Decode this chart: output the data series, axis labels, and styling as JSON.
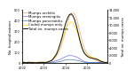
{
  "title": "",
  "background_color": "#ffffff",
  "ylabel_left": "No. hospitalizations",
  "ylabel_right": "Total no. mumps cases",
  "series": {
    "mumps_orchitis": {
      "color": "#f4a460",
      "label": "Mumps orchitis",
      "linewidth": 0.5
    },
    "mumps_meningitis": {
      "color": "#7b68ee",
      "label": "Mumps meningitis",
      "linewidth": 0.5
    },
    "mumps_pancreatitis": {
      "color": "#4682b4",
      "label": "Mumps pancreatitis",
      "linewidth": 0.5
    },
    "coded_mumps_only": {
      "color": "#ffd700",
      "label": "Coded mumps only",
      "linewidth": 0.5
    },
    "total_mumps_cases": {
      "color": "#111111",
      "label": "Total no. mumps cases",
      "linewidth": 0.7
    }
  },
  "ylim_left": [
    0,
    500
  ],
  "ylim_right": [
    0,
    14000
  ],
  "yticks_left": [
    0,
    100,
    200,
    300,
    400,
    500
  ],
  "yticks_right": [
    0,
    2000,
    4000,
    6000,
    8000,
    10000,
    12000,
    14000
  ],
  "legend_fontsize": 2.8,
  "axis_fontsize": 2.8,
  "tick_fontsize": 2.5
}
